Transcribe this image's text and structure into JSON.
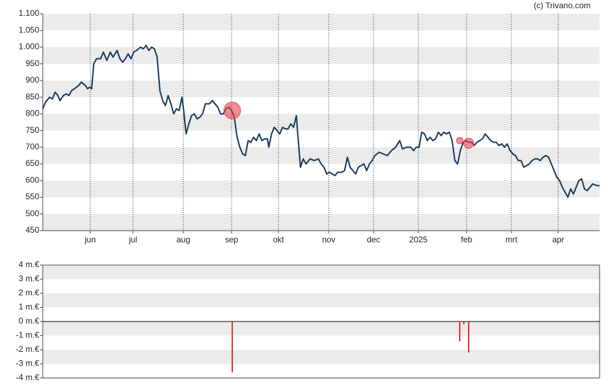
{
  "watermark": "(c) Trivano.com",
  "chart_data": [
    {
      "type": "line",
      "xlim": [
        0,
        404
      ],
      "xticks": [
        {
          "value": 34.5,
          "label": "jun"
        },
        {
          "value": 65.5,
          "label": "jul"
        },
        {
          "value": 102,
          "label": "aug"
        },
        {
          "value": 137,
          "label": "sep"
        },
        {
          "value": 171,
          "label": "okt"
        },
        {
          "value": 207.5,
          "label": "nov"
        },
        {
          "value": 240,
          "label": "dec"
        },
        {
          "value": 272.5,
          "label": "2025"
        },
        {
          "value": 307.5,
          "label": "feb"
        },
        {
          "value": 340,
          "label": "mrt"
        },
        {
          "value": 374,
          "label": "apr"
        }
      ],
      "ylim": [
        450,
        1100
      ],
      "yticks": [
        {
          "value": 1100,
          "label": "1.100"
        },
        {
          "value": 1050,
          "label": "1.050"
        },
        {
          "value": 1000,
          "label": "1.000"
        },
        950,
        900,
        850,
        800,
        750,
        700,
        650,
        600,
        550,
        500,
        450
      ],
      "grid": true,
      "series": [
        {
          "color": "#17385a",
          "x": [
            0,
            2,
            5,
            7,
            9,
            11,
            12.5,
            15,
            17,
            19,
            21,
            23,
            26,
            28,
            31,
            32.5,
            34,
            35.5,
            37,
            39,
            42,
            44,
            46.5,
            49,
            51,
            54,
            56,
            58,
            60,
            62,
            64,
            66,
            68,
            71,
            73,
            75,
            77,
            79,
            81,
            83,
            85,
            87,
            89,
            91,
            93,
            95,
            97,
            99,
            101,
            102,
            104,
            106,
            108,
            110,
            112,
            114,
            116,
            118,
            121,
            123,
            125,
            127,
            129,
            131,
            133,
            135,
            137,
            139,
            141,
            143,
            145,
            147,
            149,
            151,
            153,
            155,
            157,
            159,
            161,
            163,
            164,
            166,
            168,
            170,
            172,
            174,
            176,
            178,
            180,
            182,
            184,
            185,
            187,
            189,
            191,
            194,
            197,
            200,
            202,
            204,
            206,
            208,
            210,
            212,
            214,
            217,
            219,
            221,
            223,
            225,
            227,
            229,
            231,
            233,
            235,
            237,
            239,
            241,
            244,
            247,
            250,
            253,
            256,
            259,
            261,
            264,
            267,
            269,
            271,
            273,
            275,
            277,
            279,
            281,
            283,
            285,
            287,
            289,
            291,
            293,
            295,
            297,
            299,
            301,
            303,
            305,
            307,
            309,
            311,
            313,
            315,
            317,
            319,
            321,
            323,
            325,
            327,
            329,
            331,
            333,
            335,
            337,
            339,
            341,
            343,
            345,
            347,
            349,
            351,
            353,
            355,
            357,
            359,
            361,
            363,
            365,
            367,
            369,
            371,
            373,
            375,
            377,
            379,
            381,
            383,
            385,
            387,
            389,
            391,
            393,
            395,
            397,
            399,
            402,
            404
          ],
          "values": [
            815,
            835,
            850,
            845,
            865,
            855,
            840,
            855,
            860,
            855,
            870,
            875,
            885,
            895,
            885,
            875,
            880,
            875,
            950,
            965,
            965,
            985,
            960,
            985,
            970,
            990,
            965,
            955,
            965,
            980,
            965,
            985,
            990,
            1000,
            995,
            1005,
            990,
            1000,
            995,
            970,
            870,
            840,
            825,
            855,
            830,
            800,
            815,
            810,
            850,
            820,
            740,
            770,
            795,
            800,
            785,
            790,
            800,
            830,
            830,
            840,
            830,
            820,
            800,
            800,
            815,
            820,
            810,
            790,
            730,
            700,
            680,
            675,
            720,
            715,
            730,
            720,
            740,
            720,
            725,
            725,
            700,
            740,
            760,
            750,
            740,
            760,
            755,
            755,
            770,
            760,
            795,
            740,
            640,
            665,
            650,
            665,
            660,
            665,
            650,
            640,
            620,
            625,
            620,
            615,
            625,
            625,
            630,
            670,
            640,
            630,
            620,
            640,
            645,
            650,
            630,
            650,
            660,
            675,
            685,
            680,
            675,
            690,
            700,
            720,
            695,
            700,
            700,
            690,
            700,
            700,
            745,
            740,
            720,
            730,
            720,
            725,
            745,
            735,
            745,
            740,
            745,
            720,
            660,
            650,
            690,
            715,
            720,
            715,
            715,
            705,
            715,
            720,
            725,
            740,
            730,
            720,
            715,
            715,
            705,
            710,
            700,
            710,
            690,
            680,
            675,
            660,
            660,
            640,
            645,
            650,
            660,
            665,
            665,
            660,
            670,
            675,
            670,
            650,
            630,
            610,
            600,
            580,
            565,
            550,
            575,
            560,
            580,
            600,
            605,
            575,
            570,
            580,
            590,
            585,
            585
          ]
        }
      ],
      "markers": {
        "color": "#e8404c",
        "x": [
          137.5,
          302.5,
          305.5,
          309
        ],
        "values": [
          810,
          720,
          715,
          712
        ]
      }
    },
    {
      "type": "bar",
      "xlim": [
        0,
        404
      ],
      "ylim": [
        -4,
        4
      ],
      "yticks": [
        {
          "value": 4,
          "label": "4 m.€"
        },
        {
          "value": 3,
          "label": "3 m.€"
        },
        {
          "value": 2,
          "label": "2 m.€"
        },
        {
          "value": 1,
          "label": "1 m.€"
        },
        {
          "value": 0,
          "label": "0 m.€"
        },
        {
          "value": -1,
          "label": "-1 m.€"
        },
        {
          "value": -2,
          "label": "-2 m.€"
        },
        {
          "value": -3,
          "label": "-3 m.€"
        },
        {
          "value": -4,
          "label": "-4 m.€"
        }
      ],
      "grid": true,
      "color": "#e0303a",
      "x": [
        137.5,
        302.5,
        305.5,
        309
      ],
      "values": [
        -3.6,
        -1.4,
        -0.2,
        -2.2
      ]
    }
  ]
}
